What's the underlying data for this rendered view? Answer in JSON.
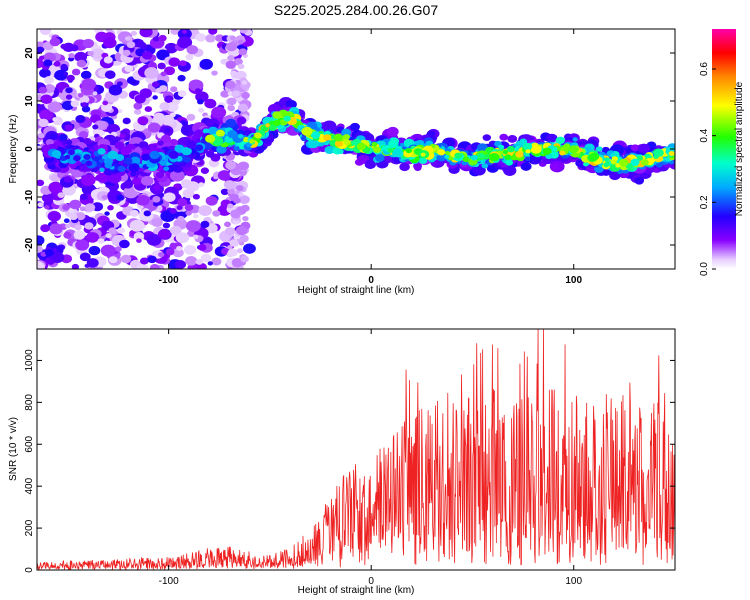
{
  "title": "S225.2025.284.00.26.G07",
  "chart_data": [
    {
      "type": "heatmap",
      "xlabel": "Height of straight line (km)",
      "ylabel": "Frequency (Hz)",
      "xlim": [
        -165,
        150
      ],
      "ylim": [
        -25,
        25
      ],
      "xticks": [
        -100,
        0,
        100
      ],
      "yticks": [
        -20,
        -10,
        0,
        10,
        20
      ],
      "colorbar": {
        "label": "Normalized spectral amplitude",
        "range": [
          0,
          0.72
        ],
        "ticks": [
          0.0,
          0.2,
          0.4,
          0.6
        ],
        "colormap": "rainbow"
      },
      "ridge": {
        "x": [
          -165,
          -140,
          -120,
          -100,
          -90,
          -80,
          -70,
          -60,
          -55,
          -50,
          -45,
          -40,
          -35,
          -30,
          -20,
          -10,
          0,
          10,
          20,
          30,
          40,
          50,
          60,
          70,
          80,
          90,
          100,
          110,
          120,
          130,
          140,
          150
        ],
        "y": [
          0,
          -2,
          -3,
          -2,
          -1,
          2,
          3,
          1,
          3,
          5,
          6,
          7,
          5,
          3,
          2,
          1,
          0,
          0,
          -1,
          0,
          -1,
          -2,
          -1,
          -1,
          0,
          0,
          0,
          -2,
          -3,
          -3,
          -2,
          -1
        ]
      }
    },
    {
      "type": "line",
      "xlabel": "Height of straight line (km)",
      "ylabel": "SNR (10 * v/v)",
      "xlim": [
        -165,
        150
      ],
      "ylim": [
        0,
        1150
      ],
      "xticks": [
        -100,
        0,
        100
      ],
      "yticks": [
        0,
        200,
        400,
        600,
        800,
        1000
      ],
      "series": [
        {
          "color": "#ee2222",
          "x": [
            -165,
            -150,
            -120,
            -100,
            -90,
            -80,
            -70,
            -60,
            -50,
            -40,
            -30,
            -20,
            -10,
            0,
            10,
            20,
            30,
            40,
            50,
            60,
            70,
            80,
            90,
            100,
            110,
            120,
            130,
            140,
            150
          ],
          "y": [
            20,
            25,
            30,
            35,
            45,
            60,
            70,
            55,
            40,
            60,
            110,
            200,
            280,
            300,
            360,
            420,
            470,
            480,
            460,
            450,
            440,
            470,
            500,
            480,
            450,
            460,
            470,
            460,
            440
          ]
        }
      ]
    }
  ]
}
